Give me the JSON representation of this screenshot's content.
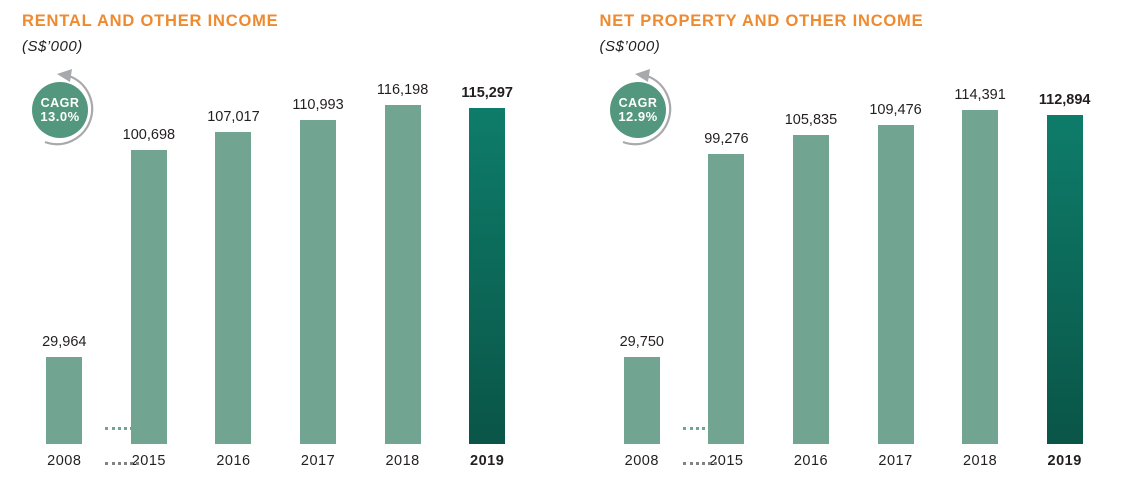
{
  "colors": {
    "title_orange": "#ee8a30",
    "bar_green": "#72a492",
    "bar_highlight_top": "#0e7c6a",
    "bar_highlight_bottom": "#0a5547",
    "cagr_circle_green": "#53977e",
    "arrow_gray": "#a7a9ac",
    "text_dark": "#231f20"
  },
  "chart_data": [
    {
      "type": "bar",
      "title": "RENTAL AND OTHER INCOME",
      "subtitle": "(S$’000)",
      "cagr": {
        "label": "CAGR",
        "value": "13.0%"
      },
      "categories": [
        "2008",
        "2015",
        "2016",
        "2017",
        "2018",
        "2019"
      ],
      "values": [
        29964,
        100698,
        107017,
        110993,
        116198,
        115297
      ],
      "value_labels": [
        "29,964",
        "100,698",
        "107,017",
        "110,993",
        "116,198",
        "115,297"
      ],
      "highlight_index": 5,
      "ylim": [
        0,
        120000
      ],
      "axis_break_after": "2008",
      "grid": false,
      "legend": false,
      "xlabel": "",
      "ylabel": ""
    },
    {
      "type": "bar",
      "title": "NET PROPERTY AND OTHER INCOME",
      "subtitle": "(S$’000)",
      "cagr": {
        "label": "CAGR",
        "value": "12.9%"
      },
      "categories": [
        "2008",
        "2015",
        "2016",
        "2017",
        "2018",
        "2019"
      ],
      "values": [
        29750,
        99276,
        105835,
        109476,
        114391,
        112894
      ],
      "value_labels": [
        "29,750",
        "99,276",
        "105,835",
        "109,476",
        "114,391",
        "112,894"
      ],
      "highlight_index": 5,
      "ylim": [
        0,
        120000
      ],
      "axis_break_after": "2008",
      "grid": false,
      "legend": false,
      "xlabel": "",
      "ylabel": ""
    }
  ]
}
